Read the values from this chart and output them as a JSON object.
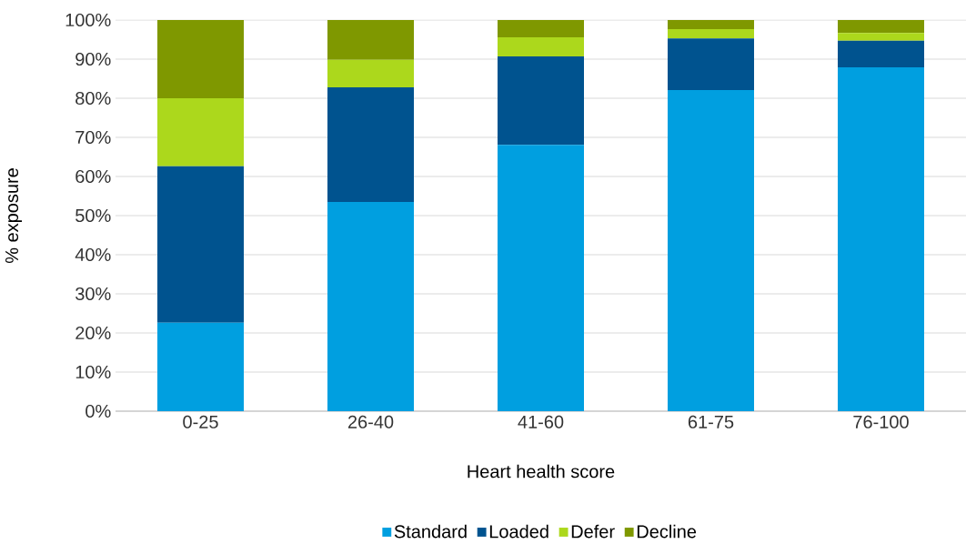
{
  "chart_data": {
    "type": "bar",
    "stacked": true,
    "xlabel": "Heart health score",
    "ylabel": "% exposure",
    "categories": [
      "0-25",
      "26-40",
      "41-60",
      "61-75",
      "76-100"
    ],
    "series": [
      {
        "name": "Standard",
        "color": "#009fe0",
        "values": [
          22.6,
          53.5,
          68.1,
          82.1,
          87.9
        ]
      },
      {
        "name": "Loaded",
        "color": "#00538f",
        "values": [
          40.0,
          29.3,
          22.6,
          13.2,
          6.8
        ]
      },
      {
        "name": "Defer",
        "color": "#acd81c",
        "values": [
          17.4,
          7.0,
          4.9,
          2.4,
          2.0
        ]
      },
      {
        "name": "Decline",
        "color": "#7f9800",
        "values": [
          20.0,
          10.2,
          4.4,
          2.3,
          3.3
        ]
      }
    ],
    "ylim": [
      0,
      100
    ],
    "yticks": [
      {
        "value": 0,
        "label": "0%"
      },
      {
        "value": 10,
        "label": "10%"
      },
      {
        "value": 20,
        "label": "20%"
      },
      {
        "value": 30,
        "label": "30%"
      },
      {
        "value": 40,
        "label": "40%"
      },
      {
        "value": 50,
        "label": "50%"
      },
      {
        "value": 60,
        "label": "60%"
      },
      {
        "value": 70,
        "label": "70%"
      },
      {
        "value": 80,
        "label": "80%"
      },
      {
        "value": 90,
        "label": "90%"
      },
      {
        "value": 100,
        "label": "100%"
      }
    ],
    "grid": "y",
    "legend": "bottom"
  }
}
